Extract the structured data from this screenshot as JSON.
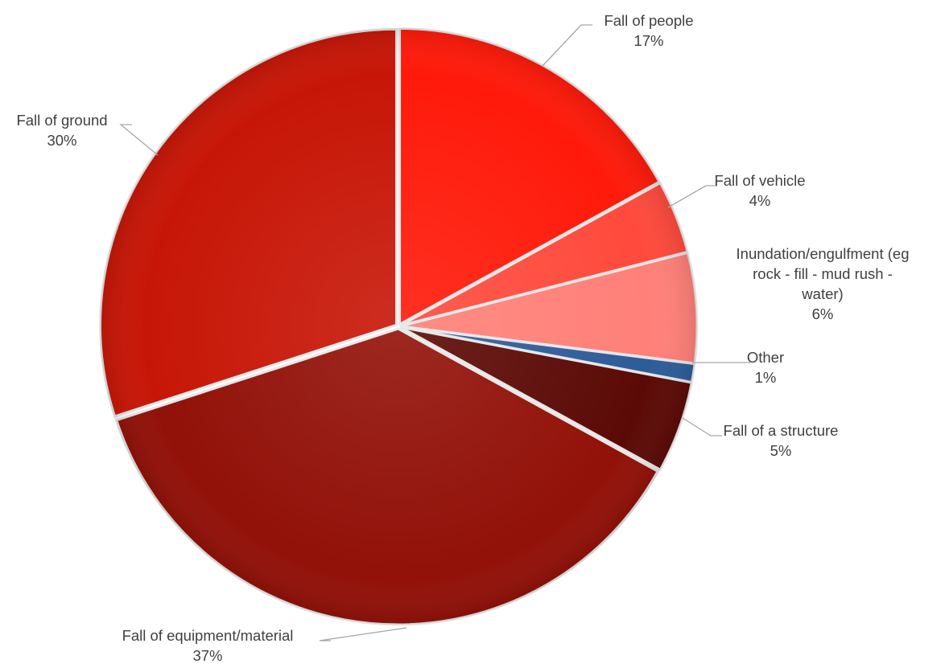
{
  "chart_data": {
    "type": "pie",
    "title": "",
    "start_angle_deg": 0,
    "direction": "clockwise",
    "legend": "none",
    "data_labels": "category-and-percent",
    "slices": [
      {
        "name": "Fall of people",
        "value": 17,
        "label_lines": [
          "Fall of people"
        ],
        "percent_label": "17%",
        "color": "#ff1a0a"
      },
      {
        "name": "Fall of vehicle",
        "value": 4,
        "label_lines": [
          "Fall of vehicle"
        ],
        "percent_label": "4%",
        "color": "#ff4a3d"
      },
      {
        "name": "Inundation/engulfment (eg rock - fill - mud rush - water)",
        "value": 6,
        "label_lines": [
          "Inundation/engulfment (eg",
          "rock - fill - mud rush -",
          "water)"
        ],
        "percent_label": "6%",
        "color": "#ff8078"
      },
      {
        "name": "Other",
        "value": 1,
        "label_lines": [
          "Other"
        ],
        "percent_label": "1%",
        "color": "#2e5c99"
      },
      {
        "name": "Fall of a structure",
        "value": 5,
        "label_lines": [
          "Fall of a structure"
        ],
        "percent_label": "5%",
        "color": "#5c0a06"
      },
      {
        "name": "Fall of equipment/material",
        "value": 37,
        "label_lines": [
          "Fall of equipment/material"
        ],
        "percent_label": "37%",
        "color": "#921108"
      },
      {
        "name": "Fall of ground",
        "value": 30,
        "label_lines": [
          "Fall of ground"
        ],
        "percent_label": "30%",
        "color": "#c71607"
      }
    ]
  }
}
